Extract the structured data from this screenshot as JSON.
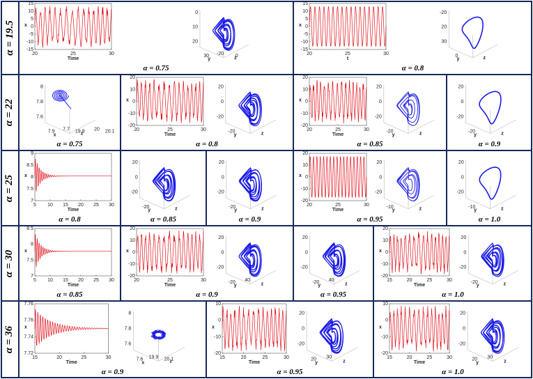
{
  "rows": [
    {
      "label": "α = 19.5",
      "cells": [
        {
          "caption": "α = 0.75",
          "panels": [
            {
              "kind": "ts",
              "behavior": "chaos",
              "xlabel": "Time",
              "ylabel": "x",
              "xticks": [
                "20",
                "25",
                "30"
              ],
              "yticks": [
                "15",
                "10",
                "5",
                "0",
                "-5",
                "-10",
                "-15"
              ]
            },
            {
              "kind": "phase",
              "shape": "chaos",
              "axis_labels": [
                "y",
                "z"
              ],
              "ticks": [
                "0",
                "10",
                "20",
                "30",
                "-20",
                "0"
              ]
            }
          ]
        },
        {
          "caption": "α = 0.8",
          "panels": [
            {
              "kind": "ts",
              "behavior": "periodic",
              "xlabel": "t",
              "ylabel": "x",
              "xticks": [
                "20",
                "25",
                "30"
              ],
              "yticks": [
                "15",
                "10",
                "5",
                "0",
                "-5",
                "-10",
                "-15"
              ]
            },
            {
              "kind": "phase",
              "shape": "limit-cycle",
              "axis_labels": [
                "y",
                "z"
              ],
              "ticks": [
                "-20",
                "20",
                "30",
                "0"
              ]
            }
          ]
        }
      ]
    },
    {
      "label": "α = 22",
      "cells": [
        {
          "caption": "α = 0.75",
          "panels": [
            {
              "kind": "phase",
              "shape": "fixed",
              "axis_labels": [
                "x",
                "z"
              ],
              "ticks": [
                "8",
                "7.8",
                "7.6",
                "7.9",
                "7.7",
                "19.9",
                "20",
                "20.1"
              ]
            }
          ]
        },
        {
          "caption": "α = 0.8",
          "panels": [
            {
              "kind": "ts",
              "behavior": "chaos",
              "xlabel": "Time",
              "ylabel": "x",
              "xticks": [
                "20",
                "25",
                "30"
              ],
              "yticks": [
                "20",
                "10",
                "0",
                "-10",
                "-20"
              ]
            },
            {
              "kind": "phase",
              "shape": "chaos",
              "axis_labels": [
                "y",
                "z"
              ],
              "ticks": [
                "20",
                "0",
                "-20",
                "-20"
              ]
            }
          ]
        },
        {
          "caption": "α = 0.85",
          "panels": [
            {
              "kind": "ts",
              "behavior": "chaos",
              "xlabel": "Time",
              "ylabel": "x",
              "xticks": [
                "20",
                "25",
                "30"
              ],
              "yticks": [
                "20",
                "10",
                "0",
                "-10",
                "-20"
              ]
            },
            {
              "kind": "phase",
              "shape": "multiloop",
              "axis_labels": [
                "y",
                "z"
              ],
              "ticks": [
                "20",
                "0",
                "-20",
                "-20"
              ]
            }
          ]
        },
        {
          "caption": "α = 0.9",
          "panels": [
            {
              "kind": "phase",
              "shape": "limit-cycle",
              "axis_labels": [
                "y",
                "z"
              ],
              "ticks": [
                "20",
                "0",
                "-20",
                "-20"
              ]
            }
          ]
        }
      ]
    },
    {
      "label": "α = 25",
      "cells": [
        {
          "caption": "α = 0.8",
          "panels": [
            {
              "kind": "ts",
              "behavior": "decay",
              "xlabel": "Time",
              "ylabel": "x",
              "xticks": [
                "5",
                "10",
                "15",
                "20",
                "25",
                "30"
              ],
              "yticks": [
                "9",
                "8.5",
                "8",
                "7.5",
                "7"
              ]
            }
          ]
        },
        {
          "caption": "α = 0.85",
          "panels": [
            {
              "kind": "phase",
              "shape": "chaos",
              "axis_labels": [
                "y",
                "z"
              ],
              "ticks": [
                "20",
                "0",
                "-20",
                "-20"
              ]
            }
          ]
        },
        {
          "caption": "α = 0.9",
          "panels": [
            {
              "kind": "phase",
              "shape": "chaos",
              "axis_labels": [
                "y",
                "z"
              ],
              "ticks": [
                "20",
                "0",
                "-20",
                "-20"
              ]
            }
          ]
        },
        {
          "caption": "α = 0.95",
          "panels": [
            {
              "kind": "ts",
              "behavior": "periodic",
              "xlabel": "Time",
              "ylabel": "x",
              "xticks": [
                "20",
                "25",
                "30"
              ],
              "yticks": [
                "20",
                "10",
                "0",
                "-10",
                "-20"
              ]
            },
            {
              "kind": "phase",
              "shape": "multiloop",
              "axis_labels": [
                "y",
                "z"
              ],
              "ticks": [
                "20",
                "0",
                "-20",
                "-10"
              ]
            }
          ]
        },
        {
          "caption": "α = 1.0",
          "panels": [
            {
              "kind": "phase",
              "shape": "limit-cycle",
              "axis_labels": [
                "y",
                "z"
              ],
              "ticks": [
                "20",
                "0",
                "-20",
                "-10"
              ]
            }
          ]
        }
      ]
    },
    {
      "label": "α = 30",
      "cells": [
        {
          "caption": "α = 0.85",
          "panels": [
            {
              "kind": "ts",
              "behavior": "decay",
              "xlabel": "Time",
              "ylabel": "x",
              "xticks": [
                "5",
                "10",
                "15",
                "20",
                "25",
                "30"
              ],
              "yticks": [
                "8.5",
                "8",
                "7.5",
                "7"
              ]
            }
          ]
        },
        {
          "caption": "α = 0.9",
          "panels": [
            {
              "kind": "ts",
              "behavior": "chaos",
              "xlabel": "Time",
              "ylabel": "x",
              "xticks": [
                "20",
                "25",
                "30"
              ],
              "yticks": [
                "20",
                "10",
                "0",
                "-10",
                "-20"
              ]
            },
            {
              "kind": "phase",
              "shape": "chaos",
              "axis_labels": [
                "y",
                "z"
              ],
              "ticks": [
                "20",
                "0",
                "-20",
                "-20",
                "40"
              ]
            }
          ]
        },
        {
          "caption": "α = 0.95",
          "panels": [
            {
              "kind": "phase",
              "shape": "chaos",
              "axis_labels": [
                "y",
                "z"
              ],
              "ticks": [
                "20",
                "0",
                "-20",
                "-20",
                "40"
              ]
            }
          ]
        },
        {
          "caption": "α = 1.0",
          "panels": [
            {
              "kind": "ts",
              "behavior": "chaos",
              "xlabel": "Time",
              "ylabel": "x",
              "xticks": [
                "15",
                "20",
                "25",
                "30"
              ],
              "yticks": [
                "20",
                "10",
                "0",
                "-10",
                "-20"
              ]
            },
            {
              "kind": "phase",
              "shape": "chaos",
              "axis_labels": [
                "y",
                "z"
              ],
              "ticks": [
                "20",
                "0",
                "-20",
                "-20"
              ]
            }
          ]
        }
      ]
    },
    {
      "label": "α = 36",
      "cells": [
        {
          "caption": "α = 0.9",
          "panels": [
            {
              "kind": "ts",
              "behavior": "decay-wide",
              "xlabel": "Time",
              "ylabel": "x",
              "xticks": [
                "15",
                "20",
                "25",
                "30"
              ],
              "yticks": [
                "7.76",
                "7.76",
                "7.74",
                "7.72"
              ]
            },
            {
              "kind": "phase",
              "shape": "blob",
              "axis_labels": [
                "x",
                "z"
              ],
              "ticks": [
                "8",
                "7.8",
                "7.6",
                "7.6",
                "19.9",
                "20.1"
              ]
            }
          ]
        },
        {
          "caption": "α = 0.95",
          "panels": [
            {
              "kind": "ts",
              "behavior": "chaos",
              "xlabel": "Time",
              "ylabel": "x",
              "xticks": [
                "15",
                "20",
                "25",
                "30"
              ],
              "yticks": [
                "10",
                "0",
                "-10",
                "-20"
              ]
            },
            {
              "kind": "phase",
              "shape": "chaos",
              "axis_labels": [
                "y",
                "z"
              ],
              "ticks": [
                "20",
                "0",
                "-20",
                "20",
                "30"
              ]
            }
          ]
        },
        {
          "caption": "α = 1.0",
          "panels": [
            {
              "kind": "ts",
              "behavior": "chaos",
              "xlabel": "Time",
              "ylabel": "x",
              "xticks": [
                "15",
                "20",
                "25",
                "30"
              ],
              "yticks": [
                "10",
                "0",
                "-10",
                "-20"
              ]
            },
            {
              "kind": "phase",
              "shape": "chaos",
              "axis_labels": [
                "y",
                "z"
              ],
              "ticks": [
                "20",
                "0",
                "-20",
                "20",
                "30"
              ]
            }
          ]
        }
      ]
    }
  ],
  "colors": {
    "border": "#14285a",
    "timeseries": "#e0141e",
    "phase": "#1a1ae6"
  }
}
